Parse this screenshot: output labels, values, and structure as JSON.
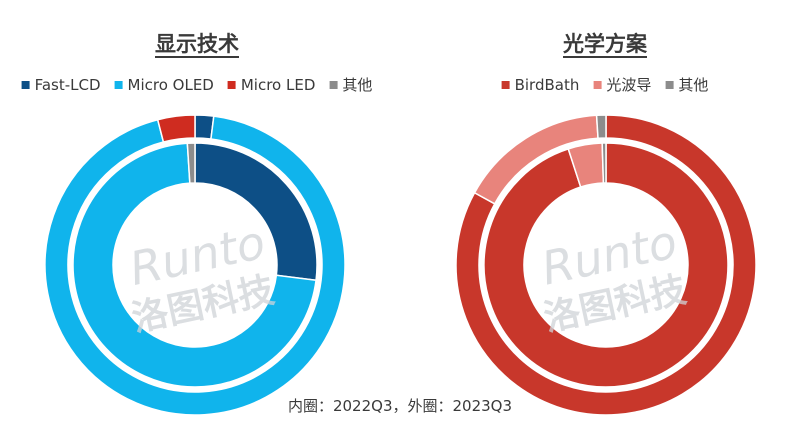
{
  "chart_data": [
    {
      "type": "donut",
      "title": "显示技术",
      "legend": [
        "Fast-LCD",
        "Micro OLED",
        "Micro LED",
        "其他"
      ],
      "colors": [
        "#0d4f86",
        "#10b4ec",
        "#cf2c20",
        "#8c8c8c"
      ],
      "legend_position": "top",
      "series": [
        {
          "name": "2022Q3",
          "ring": "inner",
          "values": [
            27,
            72,
            0,
            1
          ]
        },
        {
          "name": "2023Q3",
          "ring": "outer",
          "values": [
            2,
            94,
            4,
            0
          ]
        }
      ]
    },
    {
      "type": "donut",
      "title": "光学方案",
      "legend": [
        "BirdBath",
        "光波导",
        "其他"
      ],
      "colors": [
        "#c8372b",
        "#e8847c",
        "#8c8c8c"
      ],
      "legend_position": "top",
      "series": [
        {
          "name": "2022Q3",
          "ring": "inner",
          "values": [
            95,
            4.5,
            0.5
          ]
        },
        {
          "name": "2023Q3",
          "ring": "outer",
          "values": [
            83,
            16,
            1
          ]
        }
      ]
    }
  ],
  "footnote": "内圈：2022Q3，外圈：2023Q3",
  "watermark": {
    "latin": "Runto",
    "cjk": "洛图科技"
  }
}
